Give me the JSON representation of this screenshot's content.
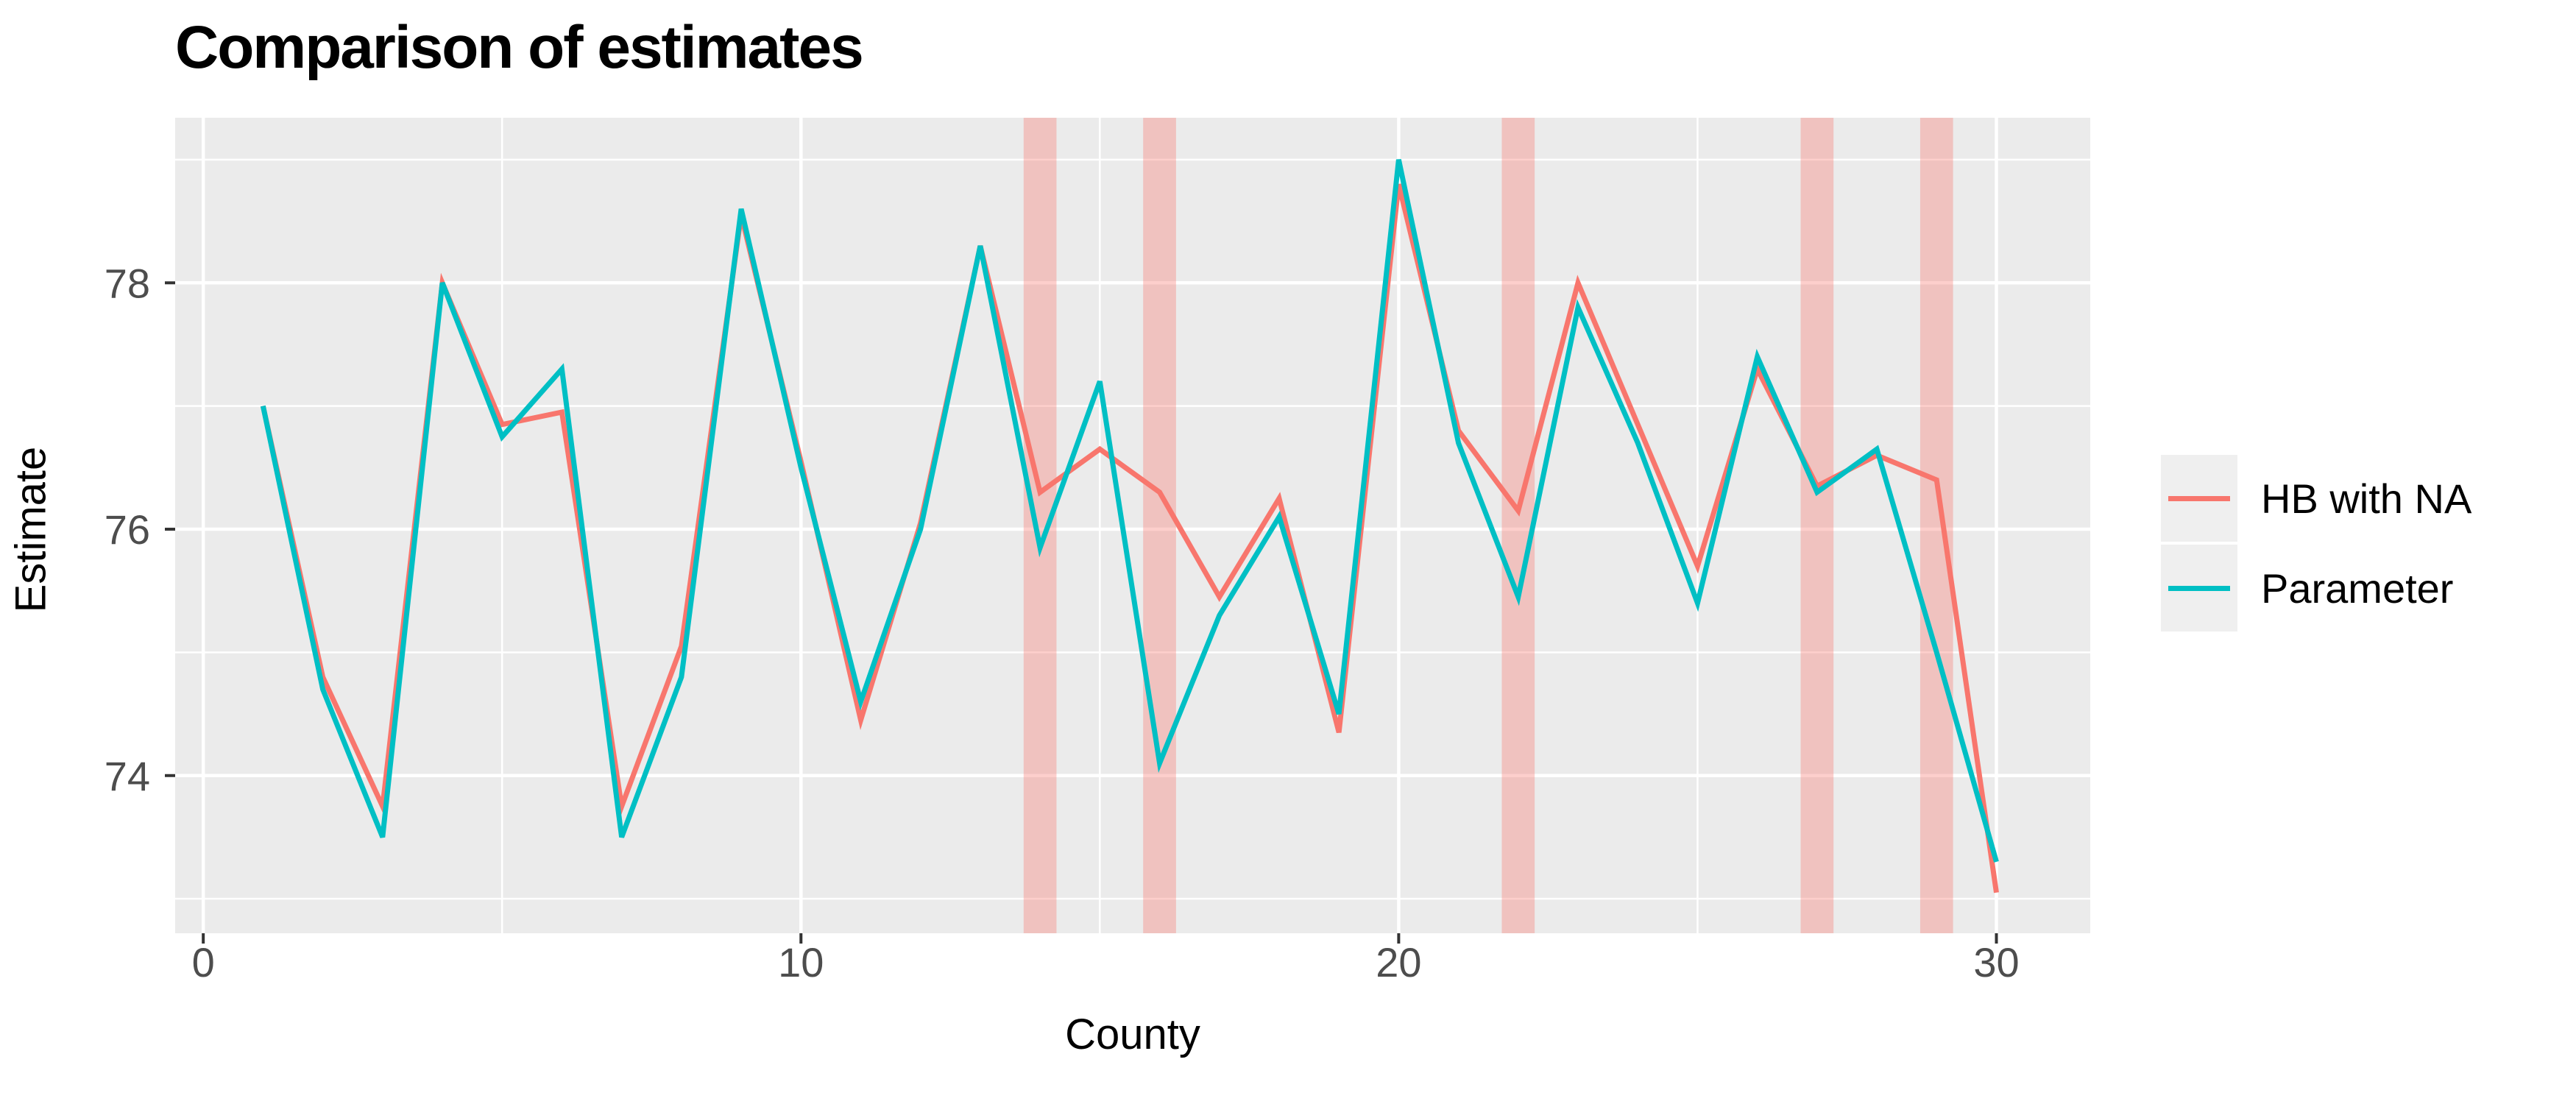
{
  "title": "Comparison of estimates",
  "axes": {
    "x_label": "County",
    "y_label": "Estimate"
  },
  "legend": {
    "items": [
      {
        "label": "HB with NA",
        "color": "#F8766D"
      },
      {
        "label": "Parameter",
        "color": "#00BFC4"
      }
    ]
  },
  "colors": {
    "panel_bg": "#EBEBEB",
    "grid": "#FFFFFF",
    "na_band": "rgba(248,118,109,0.35)",
    "tick_text": "#4D4D4D",
    "tick_mark": "#333333",
    "hb": "#F8766D",
    "parameter": "#00BFC4"
  },
  "chart_data": {
    "type": "line",
    "title": "Comparison of estimates",
    "xlabel": "County",
    "ylabel": "Estimate",
    "grid": true,
    "legend_position": "right",
    "x": [
      1,
      2,
      3,
      4,
      5,
      6,
      7,
      8,
      9,
      10,
      11,
      12,
      13,
      14,
      15,
      16,
      17,
      18,
      19,
      20,
      21,
      22,
      23,
      24,
      25,
      26,
      27,
      28,
      29,
      30
    ],
    "series": [
      {
        "name": "HB with NA",
        "color": "#F8766D",
        "values": [
          77.0,
          74.8,
          73.75,
          78.0,
          76.85,
          76.95,
          73.75,
          75.05,
          78.55,
          76.55,
          74.45,
          76.05,
          78.3,
          76.3,
          76.65,
          76.3,
          75.45,
          76.25,
          74.35,
          78.8,
          76.8,
          76.15,
          78.0,
          76.85,
          75.7,
          77.3,
          76.35,
          76.6,
          76.4,
          73.05
        ]
      },
      {
        "name": "Parameter",
        "color": "#00BFC4",
        "values": [
          77.0,
          74.7,
          73.5,
          78.0,
          76.75,
          77.3,
          73.5,
          74.8,
          78.6,
          76.5,
          74.6,
          76.0,
          78.3,
          75.85,
          77.2,
          74.1,
          75.3,
          76.1,
          74.5,
          79.0,
          76.7,
          75.45,
          77.8,
          76.7,
          75.4,
          77.4,
          76.3,
          76.65,
          75.0,
          73.3
        ]
      }
    ],
    "na_highlight_counties": [
      14,
      16,
      22,
      27,
      29
    ],
    "na_band_halfwidth": 0.275,
    "x_ticks": [
      0,
      10,
      20,
      30
    ],
    "x_minor_ticks": [
      5,
      15,
      25
    ],
    "y_ticks": [
      74,
      76,
      78
    ],
    "y_minor_ticks": [
      73,
      75,
      77,
      79
    ],
    "xlim": [
      -0.47,
      31.57
    ],
    "ylim": [
      72.72,
      79.34
    ]
  }
}
